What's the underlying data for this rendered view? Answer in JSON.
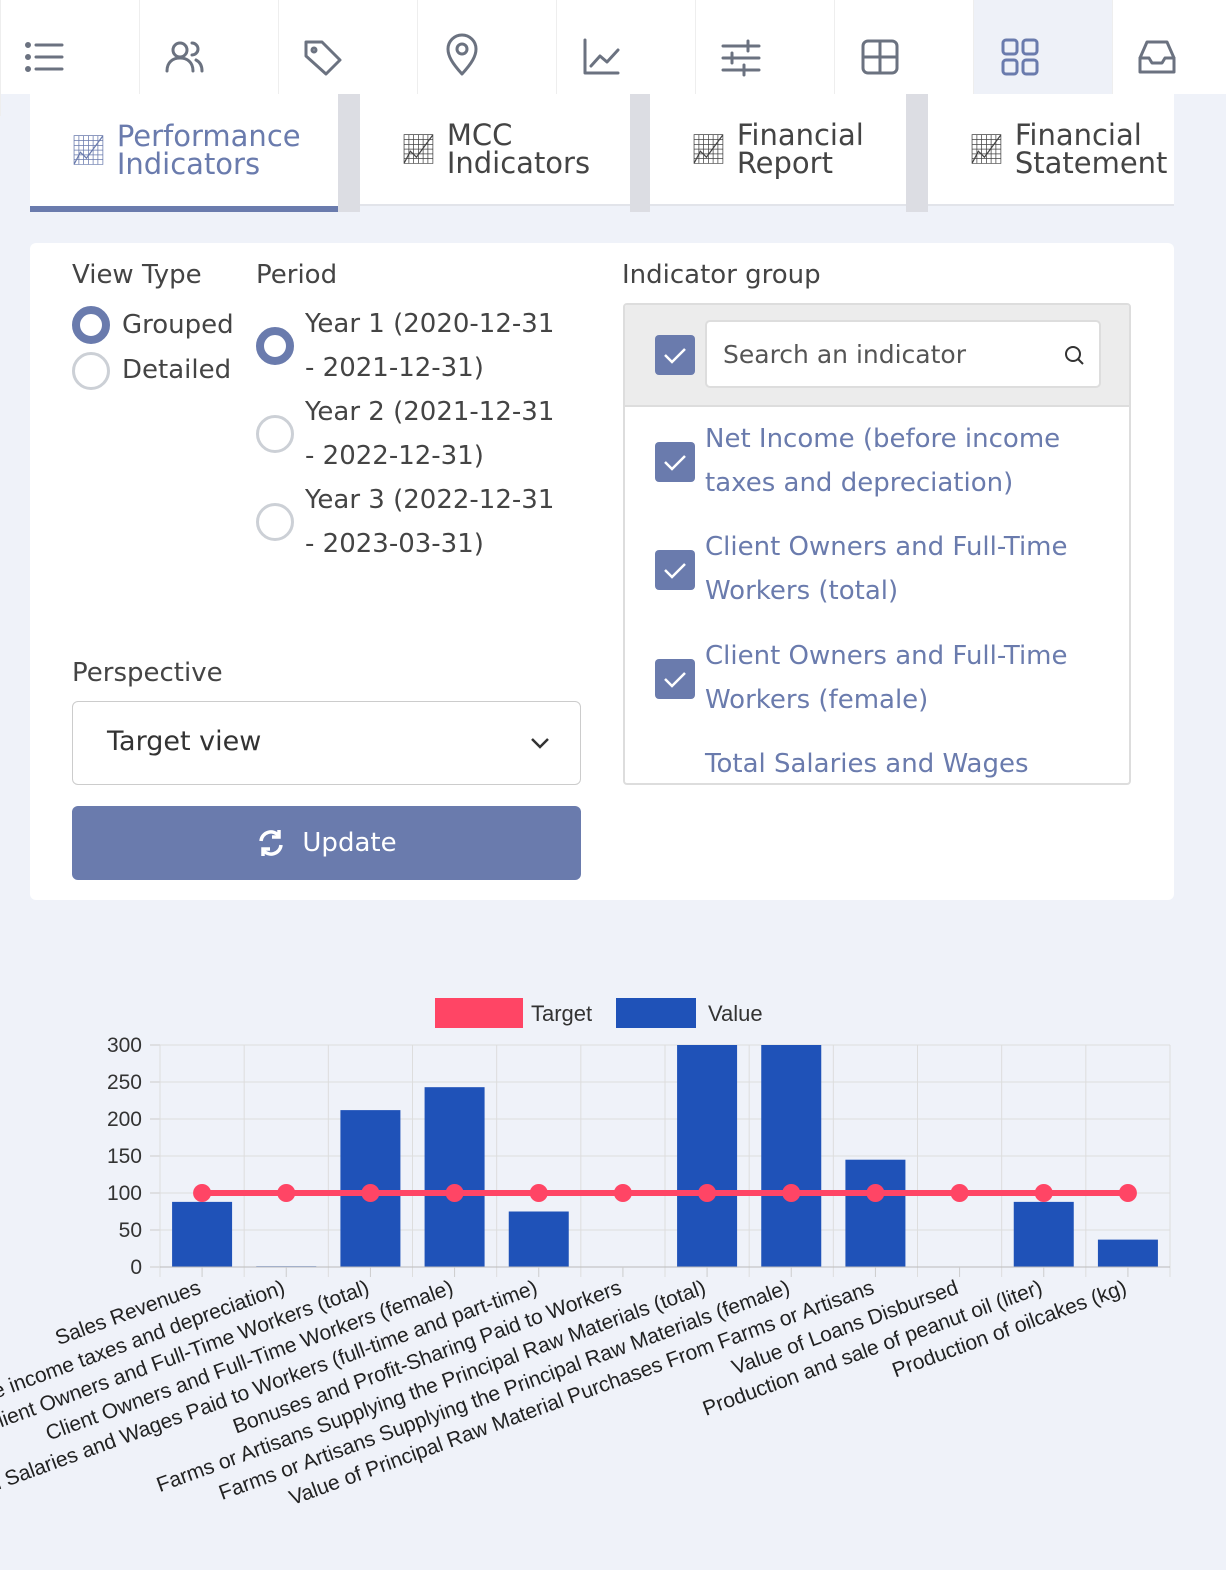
{
  "tabs": [
    "Performance Indicators",
    "MCC Indicators",
    "Financial Report",
    "Financial Statement"
  ],
  "form": {
    "view_type": {
      "label": "View Type",
      "options": [
        "Grouped",
        "Detailed"
      ]
    },
    "period": {
      "label": "Period",
      "options": [
        "Year 1 (2020-12-31 - 2021-12-31)",
        "Year 2 (2021-12-31 - 2022-12-31)",
        "Year 3 (2022-12-31 - 2023-03-31)"
      ]
    },
    "perspective": {
      "label": "Perspective",
      "value": "Target view"
    },
    "button": "Update",
    "indicator_group": {
      "label": "Indicator group",
      "search_placeholder": "Search an indicator",
      "items": [
        "Net Income (before income taxes and depreciation)",
        "Client Owners and Full-Time Workers (total)",
        "Client Owners and Full-Time Workers (female)",
        "Total Salaries and Wages"
      ]
    }
  },
  "chart_data": {
    "type": "bar",
    "categories": [
      "Sales Revenues",
      "Net Income (before income taxes and depreciation)",
      "Client Owners and Full-Time Workers (total)",
      "Client Owners and Full-Time Workers (female)",
      "Total Salaries and Wages Paid to Workers (full-time and part-time)",
      "Bonuses and Profit-Sharing Paid to Workers",
      "Farms or Artisans Supplying the Principal Raw Materials (total)",
      "Farms or Artisans Supplying the Principal Raw Materials (female)",
      "Value of Principal Raw Material Purchases From Farms or Artisans",
      "Value of Loans Disbursed",
      "Production and sale of peanut oil (liter)",
      "Production of oilcakes (kg)"
    ],
    "series": [
      {
        "name": "Target",
        "type": "line",
        "color": "#ff4565",
        "values": [
          100,
          100,
          100,
          100,
          100,
          100,
          100,
          100,
          100,
          100,
          100,
          100
        ]
      },
      {
        "name": "Value",
        "type": "bar",
        "color": "#1f52b8",
        "values": [
          88,
          1,
          212,
          243,
          75,
          0,
          300,
          300,
          145,
          0,
          88,
          37
        ]
      }
    ],
    "ylim": [
      0,
      300
    ],
    "yticks": [
      0,
      50,
      100,
      150,
      200,
      250,
      300
    ],
    "grid": true,
    "legend": "top"
  }
}
